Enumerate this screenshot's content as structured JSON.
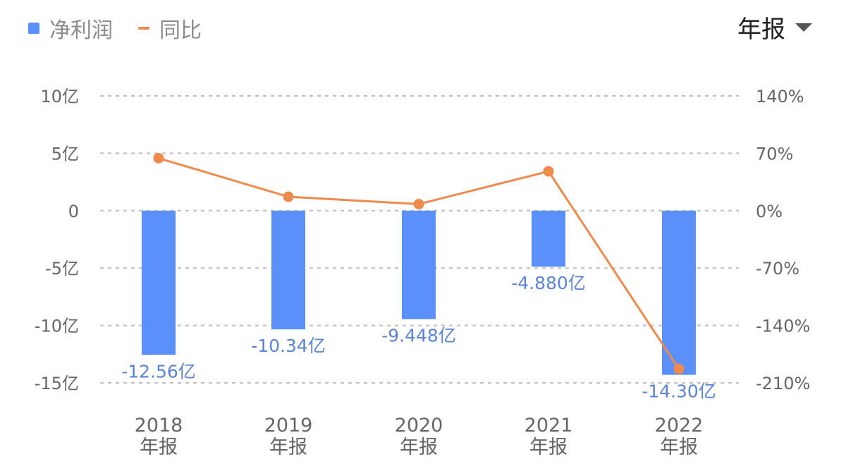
{
  "legend": {
    "bar_label": "净利润",
    "line_label": "同比"
  },
  "period_selector": {
    "label": "年报",
    "icon": "caret-down-icon"
  },
  "colors": {
    "bar": "#5b8ff9",
    "line": "#ef8a4d",
    "grid": "#bdbdbd",
    "label": "#5a84d6"
  },
  "chart_data": {
    "type": "bar",
    "categories": [
      "2018",
      "2019",
      "2020",
      "2021",
      "2022"
    ],
    "category_sublabels": [
      "年报",
      "年报",
      "年报",
      "年报",
      "年报"
    ],
    "series": [
      {
        "name": "净利润",
        "type": "bar",
        "axis": "left",
        "values": [
          -12.56,
          -10.34,
          -9.448,
          -4.88,
          -14.3
        ],
        "data_labels": [
          "-12.56亿",
          "-10.34亿",
          "-9.448亿",
          "-4.880亿",
          "-14.30亿"
        ]
      },
      {
        "name": "同比",
        "type": "line",
        "axis": "right",
        "values": [
          64,
          17,
          8,
          48,
          -193
        ]
      }
    ],
    "y_left": {
      "range": [
        -15,
        10
      ],
      "ticks": [
        10,
        5,
        0,
        -5,
        -10,
        -15
      ],
      "tick_labels": [
        "10亿",
        "5亿",
        "0",
        "-5亿",
        "-10亿",
        "-15亿"
      ]
    },
    "y_right": {
      "range": [
        -210,
        140
      ],
      "ticks": [
        140,
        70,
        0,
        -70,
        -140,
        -210
      ],
      "tick_labels": [
        "140%",
        "70%",
        "0%",
        "-70%",
        "-140%",
        "-210%"
      ]
    },
    "grid": true,
    "legend_position": "top-left"
  }
}
